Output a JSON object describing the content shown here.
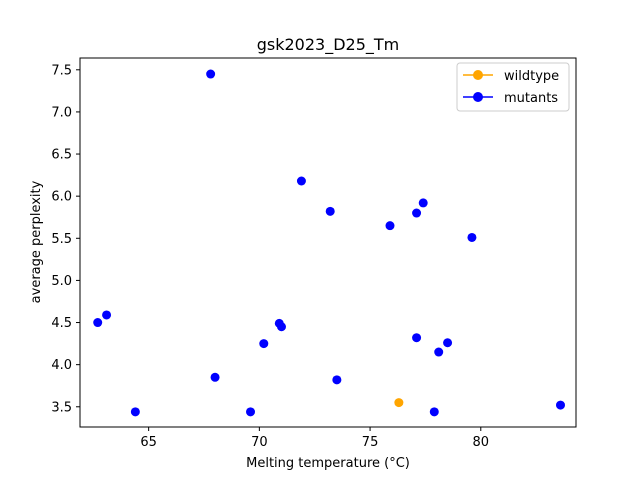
{
  "chart_data": {
    "type": "scatter",
    "title": "gsk2023_D25_Tm",
    "xlabel": "Melting temperature (°C)",
    "ylabel": "average perplexity",
    "xlim": [
      61.9,
      84.3
    ],
    "ylim": [
      3.26,
      7.64
    ],
    "xticks": [
      65,
      70,
      75,
      80
    ],
    "yticks": [
      3.5,
      4.0,
      4.5,
      5.0,
      5.5,
      6.0,
      6.5,
      7.0,
      7.5
    ],
    "grid": false,
    "legend_position": "top-right",
    "series": [
      {
        "name": "wildtype",
        "color": "#ffa500",
        "points": [
          {
            "x": 76.3,
            "y": 3.55
          }
        ]
      },
      {
        "name": "mutants",
        "color": "#0000ff",
        "points": [
          {
            "x": 67.8,
            "y": 7.45
          },
          {
            "x": 71.9,
            "y": 6.18
          },
          {
            "x": 73.2,
            "y": 5.82
          },
          {
            "x": 75.9,
            "y": 5.65
          },
          {
            "x": 77.1,
            "y": 5.8
          },
          {
            "x": 77.4,
            "y": 5.92
          },
          {
            "x": 79.6,
            "y": 5.51
          },
          {
            "x": 62.7,
            "y": 4.5
          },
          {
            "x": 63.1,
            "y": 4.59
          },
          {
            "x": 70.9,
            "y": 4.49
          },
          {
            "x": 71.0,
            "y": 4.45
          },
          {
            "x": 70.2,
            "y": 4.25
          },
          {
            "x": 77.1,
            "y": 4.32
          },
          {
            "x": 78.1,
            "y": 4.15
          },
          {
            "x": 78.5,
            "y": 4.26
          },
          {
            "x": 68.0,
            "y": 3.85
          },
          {
            "x": 73.5,
            "y": 3.82
          },
          {
            "x": 64.4,
            "y": 3.44
          },
          {
            "x": 69.6,
            "y": 3.44
          },
          {
            "x": 77.9,
            "y": 3.44
          },
          {
            "x": 83.6,
            "y": 3.52
          }
        ]
      }
    ]
  }
}
